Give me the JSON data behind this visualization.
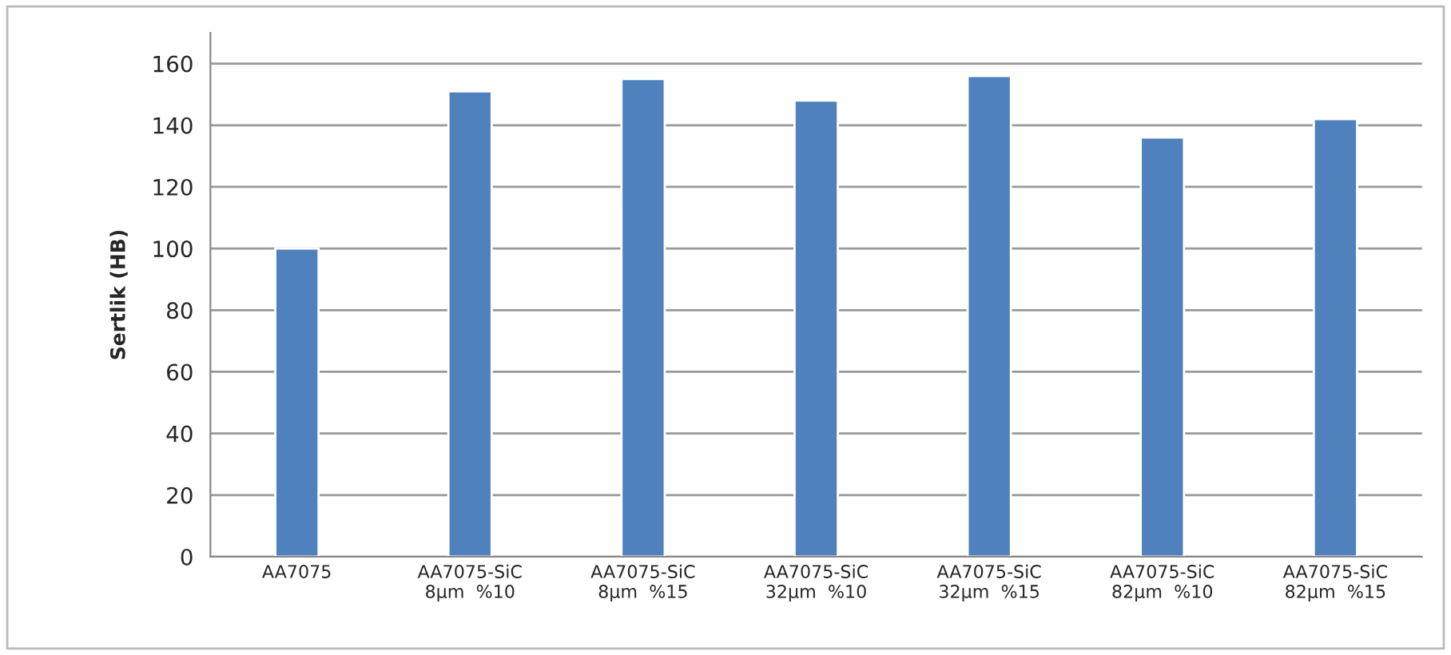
{
  "chart_data": {
    "type": "bar",
    "ylabel": "Sertlik (HB)",
    "categories": [
      "AA7075",
      "AA7075-SiC\n8µm  %10",
      "AA7075-SiC\n8µm  %15",
      "AA7075-SiC\n32µm  %10",
      "AA7075-SiC\n32µm  %15",
      "AA7075-SiC\n82µm  %10",
      "AA7075-SiC\n82µm  %15"
    ],
    "values": [
      100,
      151,
      155,
      148,
      156,
      136,
      142
    ],
    "color": "#4f81bd",
    "ylim": [
      0,
      170
    ],
    "yticks": [
      0,
      20,
      40,
      60,
      80,
      100,
      120,
      140,
      160
    ],
    "grid": "y"
  }
}
